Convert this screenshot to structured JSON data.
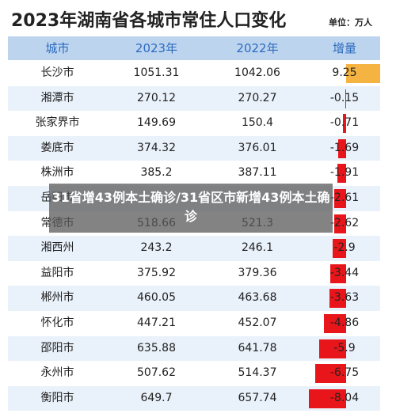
{
  "header": {
    "title": "2023年湖南省各城市常住人口变化",
    "unit": "单位：万人"
  },
  "table": {
    "columns": [
      "城市",
      "2023年",
      "2022年",
      "增量"
    ],
    "rows": [
      {
        "city": "长沙市",
        "y2023": "1051.31",
        "y2022": "1042.06",
        "change": 9.25
      },
      {
        "city": "湘潭市",
        "y2023": "270.12",
        "y2022": "270.27",
        "change": -0.15
      },
      {
        "city": "张家界市",
        "y2023": "149.69",
        "y2022": "150.4",
        "change": -0.71
      },
      {
        "city": "娄底市",
        "y2023": "374.32",
        "y2022": "376.01",
        "change": -1.69
      },
      {
        "city": "株洲市",
        "y2023": "385.2",
        "y2022": "387.11",
        "change": -1.91
      },
      {
        "city": "岳阳市",
        "change": -2.61
      },
      {
        "city": "常德市",
        "y2023": "518.66",
        "y2022": "521.3",
        "change": -2.62
      },
      {
        "city": "湘西州",
        "y2023": "243.2",
        "y2022": "246.1",
        "change": -2.9
      },
      {
        "city": "益阳市",
        "y2023": "375.92",
        "y2022": "379.36",
        "change": -3.44
      },
      {
        "city": "郴州市",
        "y2023": "460.05",
        "y2022": "463.68",
        "change": -3.63
      },
      {
        "city": "怀化市",
        "y2023": "447.21",
        "y2022": "452.07",
        "change": -4.86
      },
      {
        "city": "邵阳市",
        "y2023": "635.88",
        "y2022": "641.78",
        "change": -5.9
      },
      {
        "city": "永州市",
        "y2023": "507.62",
        "y2022": "514.37",
        "change": -6.75
      },
      {
        "city": "衡阳市",
        "y2023": "649.7",
        "y2022": "657.74",
        "change": -8.04
      }
    ]
  },
  "overlay": {
    "text": "31省增43例本土确诊/31省区市新增43例本土确诊"
  }
}
